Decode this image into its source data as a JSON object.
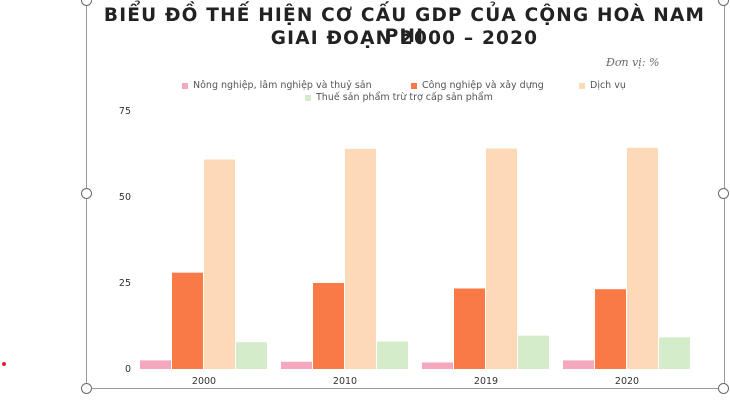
{
  "title_line1": "BIỂU ĐỒ THẾ HIỆN CƠ CẤU GDP CỦA CỘNG HOÀ NAM PHI",
  "title_line2": "GIAI ĐOẠN 2000 – 2020",
  "unit_label": "Đơn vị: %",
  "chart_data": {
    "type": "bar",
    "categories": [
      "2000",
      "2010",
      "2019",
      "2020"
    ],
    "yticks": [
      "0",
      "25",
      "50",
      "75"
    ],
    "ylim": [
      0,
      75
    ],
    "series": [
      {
        "name": "Nông nghiệp, lâm nghiệp và thuỷ sản",
        "color": "#f4a7bd",
        "values": [
          2.5,
          2.1,
          1.9,
          2.5
        ]
      },
      {
        "name": "Công nghiệp và xây dựng",
        "color": "#f97a47",
        "values": [
          28.0,
          25.0,
          23.4,
          23.2
        ]
      },
      {
        "name": "Dịch vụ",
        "color": "#fdd9b8",
        "values": [
          60.9,
          64.0,
          64.1,
          64.3
        ]
      },
      {
        "name": "Thuế sản phẩm trừ trợ cấp sản phẩm",
        "color": "#d5eccb",
        "values": [
          7.8,
          8.0,
          9.7,
          9.2
        ]
      }
    ],
    "legend_position": "top",
    "grid": false
  }
}
